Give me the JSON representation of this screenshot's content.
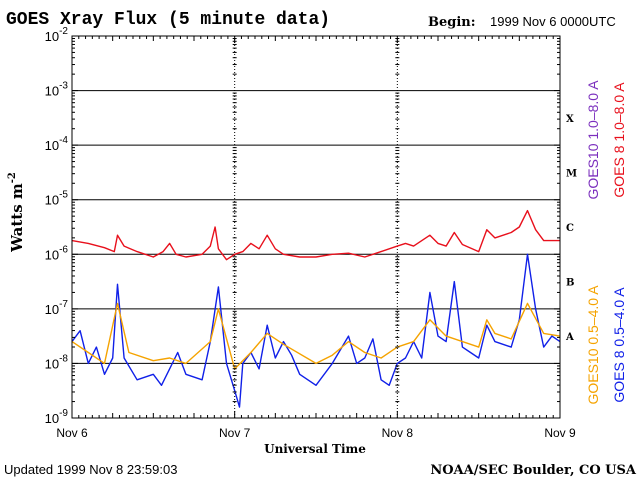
{
  "chart_data": {
    "type": "line",
    "title": "GOES Xray Flux (5 minute data)",
    "begin_label": "Begin:",
    "begin_value": "1999 Nov 6 0000UTC",
    "xlabel": "Universal Time",
    "ylabel_base": "Watts m",
    "ylabel_exp": "-2",
    "y_scale": "log",
    "ylim": [
      1e-09,
      0.01
    ],
    "xlim": [
      0,
      3
    ],
    "x_tick_labels": [
      "Nov 6",
      "Nov 7",
      "Nov 8",
      "Nov 9"
    ],
    "y_tick_labels": [
      {
        "exp": -9,
        "base": "10",
        "sup": "-9"
      },
      {
        "exp": -8,
        "base": "10",
        "sup": "-8"
      },
      {
        "exp": -7,
        "base": "10",
        "sup": "-7"
      },
      {
        "exp": -6,
        "base": "10",
        "sup": "-6"
      },
      {
        "exp": -5,
        "base": "10",
        "sup": "-5"
      },
      {
        "exp": -4,
        "base": "10",
        "sup": "-4"
      },
      {
        "exp": -3,
        "base": "10",
        "sup": "-3"
      },
      {
        "exp": -2,
        "base": "10",
        "sup": "-2"
      }
    ],
    "flare_classes": [
      {
        "label": "X",
        "exp": -3.5
      },
      {
        "label": "M",
        "exp": -4.5
      },
      {
        "label": "C",
        "exp": -5.5
      },
      {
        "label": "B",
        "exp": -6.5
      },
      {
        "label": "A",
        "exp": -7.5
      }
    ],
    "legend": [
      {
        "label": "GOES10 1.0–8.0 A",
        "color": "#7b2fbe"
      },
      {
        "label": "GOES 8 1.0–8.0 A",
        "color": "#e8101c"
      },
      {
        "label": "GOES10 0.5–4.0 A",
        "color": "#f5a300"
      },
      {
        "label": "GOES 8 0.5–4.0 A",
        "color": "#1020e8"
      }
    ],
    "series": [
      {
        "name": "GOES 8 1.0–8.0 A",
        "color": "#e8101c",
        "points": [
          [
            0,
            -5.75
          ],
          [
            0.1,
            -5.8
          ],
          [
            0.2,
            -5.88
          ],
          [
            0.26,
            -5.95
          ],
          [
            0.28,
            -5.65
          ],
          [
            0.32,
            -5.85
          ],
          [
            0.4,
            -5.95
          ],
          [
            0.5,
            -6.05
          ],
          [
            0.56,
            -5.95
          ],
          [
            0.6,
            -5.8
          ],
          [
            0.64,
            -6.0
          ],
          [
            0.7,
            -6.05
          ],
          [
            0.8,
            -6.0
          ],
          [
            0.85,
            -5.85
          ],
          [
            0.88,
            -5.5
          ],
          [
            0.9,
            -5.9
          ],
          [
            0.95,
            -6.1
          ],
          [
            1.0,
            -6.0
          ],
          [
            1.05,
            -5.95
          ],
          [
            1.1,
            -5.8
          ],
          [
            1.15,
            -5.9
          ],
          [
            1.2,
            -5.65
          ],
          [
            1.25,
            -5.9
          ],
          [
            1.3,
            -6.0
          ],
          [
            1.4,
            -6.05
          ],
          [
            1.5,
            -6.05
          ],
          [
            1.6,
            -6.0
          ],
          [
            1.7,
            -5.98
          ],
          [
            1.8,
            -6.05
          ],
          [
            1.9,
            -5.95
          ],
          [
            2.0,
            -5.85
          ],
          [
            2.05,
            -5.8
          ],
          [
            2.1,
            -5.85
          ],
          [
            2.2,
            -5.65
          ],
          [
            2.25,
            -5.8
          ],
          [
            2.3,
            -5.85
          ],
          [
            2.35,
            -5.6
          ],
          [
            2.4,
            -5.82
          ],
          [
            2.5,
            -5.95
          ],
          [
            2.55,
            -5.55
          ],
          [
            2.6,
            -5.7
          ],
          [
            2.7,
            -5.6
          ],
          [
            2.75,
            -5.5
          ],
          [
            2.8,
            -5.2
          ],
          [
            2.85,
            -5.55
          ],
          [
            2.9,
            -5.75
          ],
          [
            3.0,
            -5.75
          ]
        ]
      },
      {
        "name": "GOES 8 0.5–4.0 A",
        "color": "#1020e8",
        "points": [
          [
            0,
            -7.6
          ],
          [
            0.05,
            -7.4
          ],
          [
            0.1,
            -8.0
          ],
          [
            0.15,
            -7.7
          ],
          [
            0.2,
            -8.2
          ],
          [
            0.25,
            -7.9
          ],
          [
            0.28,
            -6.55
          ],
          [
            0.32,
            -7.9
          ],
          [
            0.4,
            -8.3
          ],
          [
            0.5,
            -8.2
          ],
          [
            0.55,
            -8.4
          ],
          [
            0.6,
            -8.1
          ],
          [
            0.65,
            -7.8
          ],
          [
            0.7,
            -8.2
          ],
          [
            0.8,
            -8.3
          ],
          [
            0.85,
            -7.6
          ],
          [
            0.9,
            -6.6
          ],
          [
            0.95,
            -8.0
          ],
          [
            1.0,
            -8.5
          ],
          [
            1.03,
            -8.8
          ],
          [
            1.05,
            -8.0
          ],
          [
            1.1,
            -7.8
          ],
          [
            1.15,
            -8.1
          ],
          [
            1.2,
            -7.3
          ],
          [
            1.25,
            -7.9
          ],
          [
            1.3,
            -7.6
          ],
          [
            1.35,
            -7.85
          ],
          [
            1.4,
            -8.2
          ],
          [
            1.5,
            -8.4
          ],
          [
            1.6,
            -8.0
          ],
          [
            1.7,
            -7.5
          ],
          [
            1.75,
            -8.0
          ],
          [
            1.8,
            -7.9
          ],
          [
            1.85,
            -7.55
          ],
          [
            1.9,
            -8.3
          ],
          [
            1.95,
            -8.4
          ],
          [
            2.0,
            -8.0
          ],
          [
            2.05,
            -7.9
          ],
          [
            2.1,
            -7.6
          ],
          [
            2.15,
            -7.9
          ],
          [
            2.2,
            -6.7
          ],
          [
            2.25,
            -7.5
          ],
          [
            2.3,
            -7.6
          ],
          [
            2.35,
            -6.5
          ],
          [
            2.4,
            -7.7
          ],
          [
            2.45,
            -7.8
          ],
          [
            2.5,
            -7.9
          ],
          [
            2.55,
            -7.3
          ],
          [
            2.6,
            -7.6
          ],
          [
            2.7,
            -7.7
          ],
          [
            2.75,
            -7.2
          ],
          [
            2.8,
            -6.0
          ],
          [
            2.85,
            -7.0
          ],
          [
            2.9,
            -7.7
          ],
          [
            2.95,
            -7.5
          ],
          [
            3.0,
            -7.6
          ]
        ]
      },
      {
        "name": "GOES10 0.5–4.0 A",
        "color": "#f5a300",
        "points": [
          [
            0,
            -7.6
          ],
          [
            0.1,
            -7.8
          ],
          [
            0.2,
            -8.0
          ],
          [
            0.28,
            -6.9
          ],
          [
            0.35,
            -7.8
          ],
          [
            0.5,
            -7.95
          ],
          [
            0.6,
            -7.9
          ],
          [
            0.7,
            -8.0
          ],
          [
            0.85,
            -7.6
          ],
          [
            0.9,
            -7.0
          ],
          [
            1.0,
            -8.1
          ],
          [
            1.1,
            -7.8
          ],
          [
            1.2,
            -7.45
          ],
          [
            1.3,
            -7.65
          ],
          [
            1.5,
            -8.0
          ],
          [
            1.6,
            -7.85
          ],
          [
            1.7,
            -7.6
          ],
          [
            1.8,
            -7.8
          ],
          [
            1.9,
            -7.9
          ],
          [
            2.0,
            -7.7
          ],
          [
            2.1,
            -7.6
          ],
          [
            2.2,
            -7.2
          ],
          [
            2.3,
            -7.5
          ],
          [
            2.4,
            -7.6
          ],
          [
            2.5,
            -7.7
          ],
          [
            2.55,
            -7.2
          ],
          [
            2.6,
            -7.45
          ],
          [
            2.7,
            -7.55
          ],
          [
            2.8,
            -6.9
          ],
          [
            2.9,
            -7.45
          ],
          [
            3.0,
            -7.5
          ]
        ]
      }
    ],
    "footer_left": "Updated 1999 Nov  8 23:59:03",
    "footer_right": "NOAA/SEC Boulder, CO USA"
  }
}
